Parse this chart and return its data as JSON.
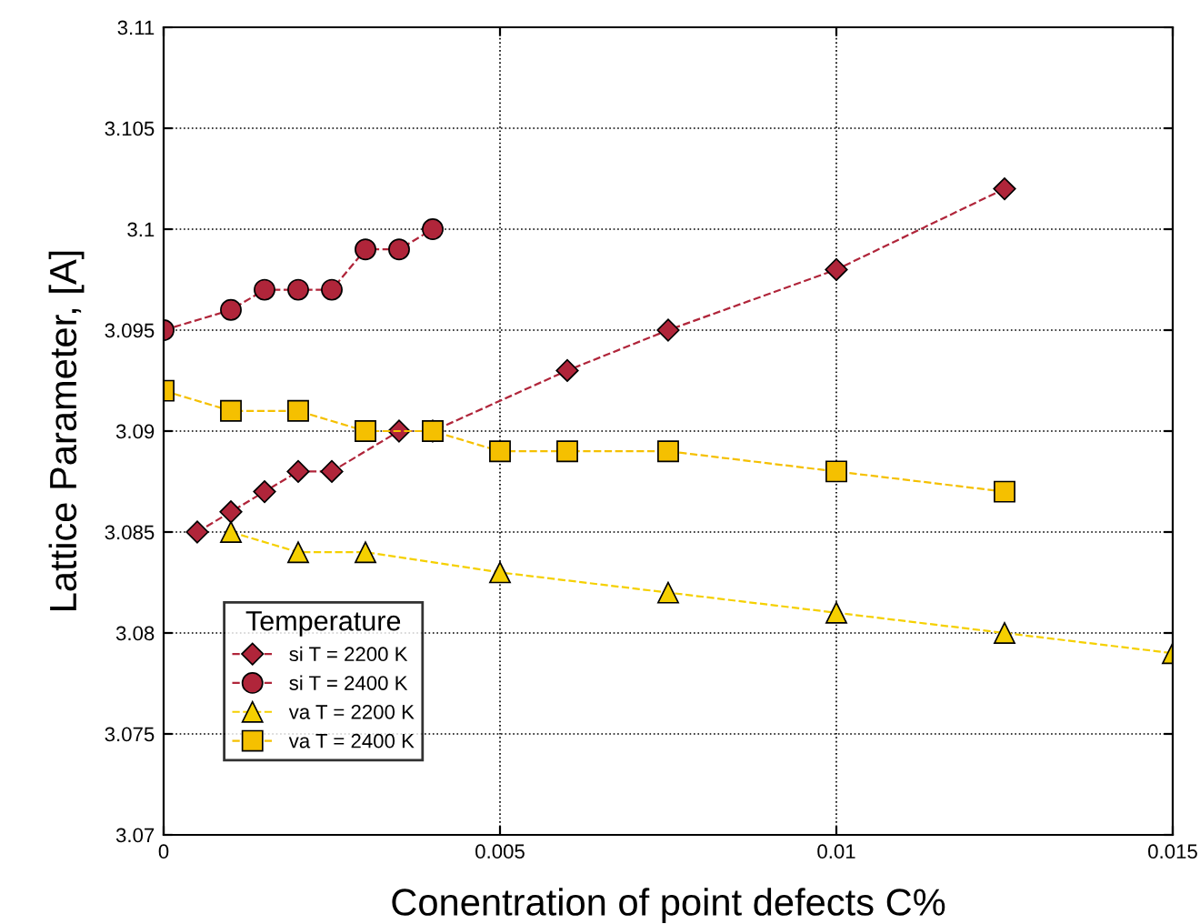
{
  "chart_data": {
    "type": "line",
    "xlabel": "Conentration of point defects C%",
    "ylabel": "Lattice Parameter, [A]",
    "legend_title": "Temperature",
    "legend": "bottom left",
    "grid": true,
    "line_style": "dashed",
    "xlim": [
      0,
      0.015
    ],
    "xticks": [
      0,
      0.005,
      0.01,
      0.015
    ],
    "ylim": [
      3.07,
      3.11
    ],
    "yticks": [
      3.07,
      3.075,
      3.08,
      3.085,
      3.09,
      3.095,
      3.1,
      3.105,
      3.11
    ],
    "series": [
      {
        "name": "si T = 2200 K",
        "color": "#b0253a",
        "marker": "diamond",
        "x": [
          0.0005,
          0.001,
          0.0015,
          0.002,
          0.0025,
          0.0035,
          0.004,
          0.006,
          0.0075,
          0.01,
          0.0125
        ],
        "values": [
          3.085,
          3.086,
          3.087,
          3.088,
          3.088,
          3.09,
          3.09,
          3.093,
          3.095,
          3.098,
          3.102
        ]
      },
      {
        "name": "si T = 2400 K",
        "color": "#b0253a",
        "marker": "circle",
        "x": [
          0,
          0.001,
          0.0015,
          0.002,
          0.0025,
          0.003,
          0.0035,
          0.004
        ],
        "values": [
          3.095,
          3.096,
          3.097,
          3.097,
          3.097,
          3.099,
          3.099,
          3.1
        ]
      },
      {
        "name": "va T = 2200 K",
        "color": "#f5d000",
        "marker": "triangle",
        "x": [
          0.001,
          0.002,
          0.003,
          0.005,
          0.0075,
          0.01,
          0.0125,
          0.015
        ],
        "values": [
          3.085,
          3.084,
          3.084,
          3.083,
          3.082,
          3.081,
          3.08,
          3.079
        ]
      },
      {
        "name": "va T = 2400 K",
        "color": "#f5c000",
        "marker": "square",
        "x": [
          0,
          0.001,
          0.002,
          0.003,
          0.004,
          0.005,
          0.006,
          0.0075,
          0.01,
          0.0125
        ],
        "values": [
          3.092,
          3.091,
          3.091,
          3.09,
          3.09,
          3.089,
          3.089,
          3.089,
          3.088,
          3.087
        ]
      }
    ]
  }
}
